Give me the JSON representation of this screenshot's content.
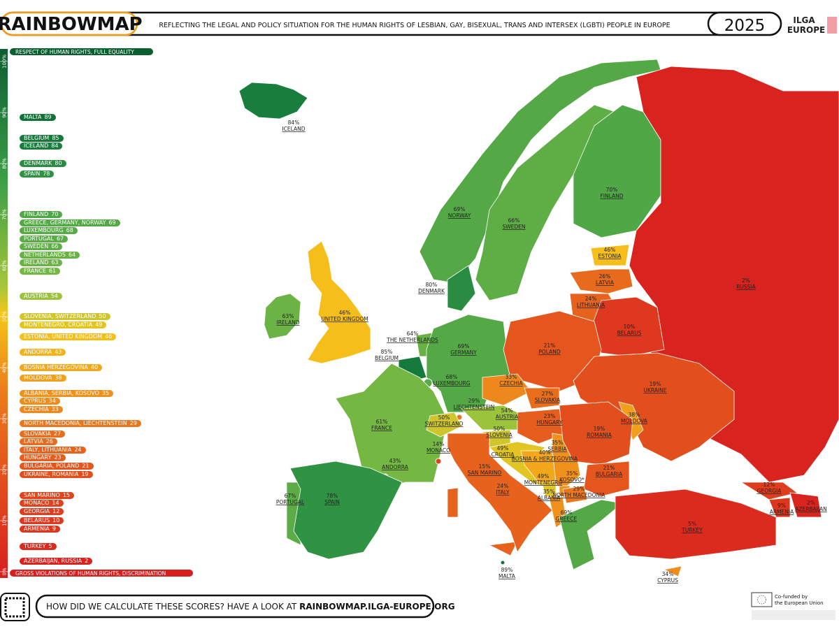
{
  "header": {
    "logo": "RAINBOWMAP",
    "subtitle": "REFLECTING THE LEGAL AND POLICY SITUATION FOR THE HUMAN RIGHTS OF LESBIAN, GAY, BISEXUAL, TRANS AND INTERSEX (LGBTI) PEOPLE IN EUROPE",
    "year": "2025",
    "org": [
      "ILGA",
      "EUROPE"
    ]
  },
  "scale": {
    "top_label": "RESPECT OF HUMAN RIGHTS, FULL EQUALITY",
    "bottom_label": "GROSS VIOLATIONS OF HUMAN RIGHTS, DISCRIMINATION",
    "lim": [
      0,
      100
    ],
    "ticks": [
      {
        "value": 100,
        "label": "100%"
      },
      {
        "value": 90,
        "label": "90%"
      },
      {
        "value": 80,
        "label": "80%"
      },
      {
        "value": 70,
        "label": "70%"
      },
      {
        "value": 60,
        "label": "60%"
      },
      {
        "value": 50,
        "label": "50%"
      },
      {
        "value": 40,
        "label": "40%"
      },
      {
        "value": 30,
        "label": "30%"
      },
      {
        "value": 20,
        "label": "20%"
      },
      {
        "value": 10,
        "label": "10%"
      },
      {
        "value": 0,
        "label": "0%"
      }
    ],
    "entries": [
      {
        "names": "MALTA",
        "score": 89
      },
      {
        "names": "BELGIUM",
        "score": 85
      },
      {
        "names": "ICELAND",
        "score": 84
      },
      {
        "names": "DENMARK",
        "score": 80
      },
      {
        "names": "SPAIN",
        "score": 78
      },
      {
        "names": "FINLAND",
        "score": 70
      },
      {
        "names": "GREECE, GERMANY, NORWAY",
        "score": 69
      },
      {
        "names": "LUXEMBOURG",
        "score": 68
      },
      {
        "names": "PORTUGAL",
        "score": 67
      },
      {
        "names": "SWEDEN",
        "score": 66
      },
      {
        "names": "NETHERLANDS",
        "score": 64
      },
      {
        "names": "IRELAND",
        "score": 63
      },
      {
        "names": "FRANCE",
        "score": 61
      },
      {
        "names": "AUSTRIA",
        "score": 54
      },
      {
        "names": "SLOVENIA, SWITZERLAND",
        "score": 50
      },
      {
        "names": "MONTENEGRO, CROATIA",
        "score": 49
      },
      {
        "names": "ESTONIA, UNITED KINGDOM",
        "score": 46
      },
      {
        "names": "ANDORRA",
        "score": 43
      },
      {
        "names": "BOSNIA HERZEGOVINA",
        "score": 40
      },
      {
        "names": "MOLDOVA",
        "score": 38
      },
      {
        "names": "ALBANIA, SERBIA, KOSOVO",
        "score": 35
      },
      {
        "names": "CYPRUS",
        "score": 34
      },
      {
        "names": "CZECHIA",
        "score": 33
      },
      {
        "names": "NORTH MACEDONIA, LIECHTENSTEIN",
        "score": 29
      },
      {
        "names": "SLOVAKIA",
        "score": 27
      },
      {
        "names": "LATVIA",
        "score": 26
      },
      {
        "names": "ITALY, LITHUANIA",
        "score": 24
      },
      {
        "names": "HUNGARY",
        "score": 23
      },
      {
        "names": "BULGARIA, POLAND",
        "score": 21
      },
      {
        "names": "UKRAINE, ROMANIA",
        "score": 19
      },
      {
        "names": "SAN MARINO",
        "score": 15
      },
      {
        "names": "MONACO",
        "score": 14
      },
      {
        "names": "GEORGIA",
        "score": 12
      },
      {
        "names": "BELARUS",
        "score": 10
      },
      {
        "names": "ARMENIA",
        "score": 9
      },
      {
        "names": "TURKEY",
        "score": 5
      },
      {
        "names": "AZERBAIJAN, RUSSIA",
        "score": 2
      }
    ]
  },
  "countries": [
    {
      "name": "ICELAND",
      "score": 84,
      "score_label": "84%"
    },
    {
      "name": "NORWAY",
      "score": 69,
      "score_label": "69%"
    },
    {
      "name": "SWEDEN",
      "score": 66,
      "score_label": "66%"
    },
    {
      "name": "FINLAND",
      "score": 70,
      "score_label": "70%"
    },
    {
      "name": "RUSSIA",
      "score": 2,
      "score_label": "2%"
    },
    {
      "name": "ESTONIA",
      "score": 46,
      "score_label": "46%"
    },
    {
      "name": "LATVIA",
      "score": 26,
      "score_label": "26%"
    },
    {
      "name": "LITHUANIA",
      "score": 24,
      "score_label": "24%"
    },
    {
      "name": "BELARUS",
      "score": 10,
      "score_label": "10%"
    },
    {
      "name": "DENMARK",
      "score": 80,
      "score_label": "80%"
    },
    {
      "name": "IRELAND",
      "score": 63,
      "score_label": "63%"
    },
    {
      "name": "UNITED KINGDOM",
      "score": 46,
      "score_label": "46%"
    },
    {
      "name": "THE NETHERLANDS",
      "score": 64,
      "score_label": "64%"
    },
    {
      "name": "BELGIUM",
      "score": 85,
      "score_label": "85%"
    },
    {
      "name": "GERMANY",
      "score": 69,
      "score_label": "69%"
    },
    {
      "name": "POLAND",
      "score": 21,
      "score_label": "21%"
    },
    {
      "name": "LUXEMBOURG",
      "score": 68,
      "score_label": "68%"
    },
    {
      "name": "CZECHIA",
      "score": 33,
      "score_label": "33%"
    },
    {
      "name": "UKRAINE",
      "score": 19,
      "score_label": "19%"
    },
    {
      "name": "SLOVAKIA",
      "score": 27,
      "score_label": "27%"
    },
    {
      "name": "LIECHTENSTEIN",
      "score": 29,
      "score_label": "29%"
    },
    {
      "name": "AUSTRIA",
      "score": 54,
      "score_label": "54%"
    },
    {
      "name": "FRANCE",
      "score": 61,
      "score_label": "61%"
    },
    {
      "name": "SWITZERLAND",
      "score": 50,
      "score_label": "50%"
    },
    {
      "name": "HUNGARY",
      "score": 23,
      "score_label": "23%"
    },
    {
      "name": "MOLDOVA",
      "score": 38,
      "score_label": "38%"
    },
    {
      "name": "SLOVENIA",
      "score": 50,
      "score_label": "50%"
    },
    {
      "name": "MONACO",
      "score": 14,
      "score_label": "14%"
    },
    {
      "name": "CROATIA",
      "score": 49,
      "score_label": "49%"
    },
    {
      "name": "SERBIA",
      "score": 35,
      "score_label": "35%"
    },
    {
      "name": "ROMANIA",
      "score": 19,
      "score_label": "19%"
    },
    {
      "name": "ANDORRA",
      "score": 43,
      "score_label": "43%"
    },
    {
      "name": "BOSNIA & HERZEGOVINA",
      "score": 40,
      "score_label": "40%"
    },
    {
      "name": "SAN MARINO",
      "score": 15,
      "score_label": "15%"
    },
    {
      "name": "KOSOVO*",
      "score": 35,
      "score_label": "35%"
    },
    {
      "name": "BULGARIA",
      "score": 21,
      "score_label": "21%"
    },
    {
      "name": "MONTENEGRO",
      "score": 49,
      "score_label": "49%"
    },
    {
      "name": "PORTUGAL",
      "score": 67,
      "score_label": "67%"
    },
    {
      "name": "SPAIN",
      "score": 78,
      "score_label": "78%"
    },
    {
      "name": "ITALY",
      "score": 24,
      "score_label": "24%"
    },
    {
      "name": "ALBANIA",
      "score": 35,
      "score_label": "35%"
    },
    {
      "name": "NORTH MACEDONIA",
      "score": 29,
      "score_label": "29%"
    },
    {
      "name": "GEORGIA",
      "score": 12,
      "score_label": "12%"
    },
    {
      "name": "ARMENIA",
      "score": 9,
      "score_label": "9%"
    },
    {
      "name": "AZERBAIJAN",
      "score": 2,
      "score_label": "2%"
    },
    {
      "name": "GREECE",
      "score": 69,
      "score_label": "69%"
    },
    {
      "name": "TURKEY",
      "score": 5,
      "score_label": "5%"
    },
    {
      "name": "MALTA",
      "score": 89,
      "score_label": "89%"
    },
    {
      "name": "CYPRUS",
      "score": 34,
      "score_label": "34%"
    }
  ],
  "footer": {
    "question": "HOW DID WE CALCULATE THESE SCORES? HAVE A LOOK AT",
    "url": "RAINBOWMAP.ILGA-EUROPE.ORG",
    "eu": [
      "Co-funded by",
      "the European Union"
    ]
  }
}
